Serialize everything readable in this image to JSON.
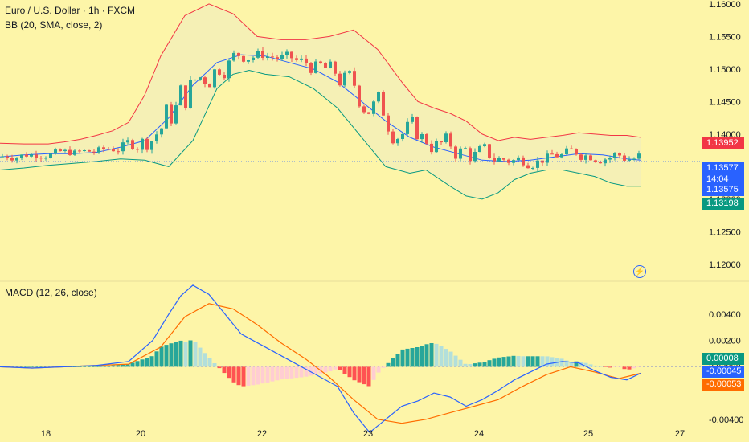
{
  "header": {
    "symbol_title": "Euro / U.S. Dollar · 1h · FXCM",
    "bb_legend": "BB (20, SMA, close, 2)",
    "macd_legend": "MACD (12, 26, close)"
  },
  "colors": {
    "up": "#26a69a",
    "down": "#ef5350",
    "bb_upper": "#f23645",
    "bb_lower": "#089981",
    "bb_basis": "#2962ff",
    "bb_fill": "#f3efb8",
    "macd_line": "#2962ff",
    "signal_line": "#ff6d00"
  },
  "price_tags": [
    {
      "name": "bb-upper-tag",
      "label": "1.13952",
      "color": "#f23645",
      "value": 1.13952
    },
    {
      "name": "last-price-tag",
      "label": "1.13577",
      "extra": "14:04",
      "color": "#2962ff",
      "value": 1.13577
    },
    {
      "name": "bb-basis-tag",
      "label": "1.13575",
      "color": "#2962ff",
      "value": 1.13575
    },
    {
      "name": "bb-lower-tag",
      "label": "1.13198",
      "color": "#089981",
      "value": 1.13198
    }
  ],
  "macd_tags": [
    {
      "name": "histogram-tag",
      "label": "0.00008",
      "color": "#089981",
      "value": 8e-05
    },
    {
      "name": "macd-line-tag",
      "label": "-0.00045",
      "color": "#2962ff",
      "value": -0.00045
    },
    {
      "name": "signal-line-tag",
      "label": "-0.00053",
      "color": "#ff6d00",
      "value": -0.00053
    }
  ],
  "chart_data": [
    {
      "type": "candlestick",
      "title": "Euro / U.S. Dollar · 1h · FXCM",
      "x_ticks": [
        "18",
        "20",
        "22",
        "23",
        "24",
        "25",
        "27"
      ],
      "y_ticks": [
        "1.16000",
        "1.15500",
        "1.15000",
        "1.14500",
        "1.14000",
        "1.13500",
        "1.13000",
        "1.12500",
        "1.12000"
      ],
      "ylim": [
        1.1174,
        1.1606
      ],
      "last_price": 1.13577,
      "series": [
        {
          "name": "BB upper",
          "x": [
            0,
            30,
            60,
            80,
            100,
            120,
            140,
            160,
            180,
            200,
            230,
            260,
            290,
            320,
            350,
            380,
            410,
            440,
            470,
            500,
            520,
            540,
            560,
            580,
            600,
            620,
            640,
            660,
            680,
            700,
            720,
            740,
            760,
            780,
            797
          ],
          "values": [
            1.1386,
            1.1385,
            1.1385,
            1.1388,
            1.1392,
            1.1398,
            1.1405,
            1.1418,
            1.146,
            1.152,
            1.1582,
            1.16,
            1.1585,
            1.155,
            1.1545,
            1.1545,
            1.155,
            1.156,
            1.153,
            1.148,
            1.145,
            1.144,
            1.1432,
            1.142,
            1.14,
            1.139,
            1.1395,
            1.1392,
            1.1395,
            1.1398,
            1.1402,
            1.14,
            1.1398,
            1.1398,
            1.1395
          ]
        },
        {
          "name": "BB basis",
          "x": [
            0,
            30,
            60,
            90,
            120,
            150,
            180,
            210,
            240,
            270,
            300,
            330,
            360,
            390,
            420,
            450,
            480,
            510,
            540,
            570,
            600,
            630,
            660,
            690,
            720,
            750,
            780,
            797
          ],
          "values": [
            1.1365,
            1.1368,
            1.137,
            1.137,
            1.1372,
            1.138,
            1.139,
            1.1425,
            1.1475,
            1.151,
            1.1522,
            1.152,
            1.151,
            1.15,
            1.148,
            1.145,
            1.142,
            1.1395,
            1.138,
            1.137,
            1.136,
            1.1358,
            1.136,
            1.1365,
            1.137,
            1.1368,
            1.1362,
            1.136
          ]
        },
        {
          "name": "BB lower",
          "x": [
            0,
            30,
            60,
            90,
            120,
            150,
            180,
            210,
            240,
            270,
            290,
            310,
            330,
            360,
            390,
            420,
            450,
            480,
            510,
            530,
            560,
            580,
            600,
            620,
            640,
            660,
            680,
            700,
            720,
            740,
            760,
            780,
            797
          ],
          "values": [
            1.1345,
            1.1348,
            1.1352,
            1.1355,
            1.1358,
            1.1362,
            1.136,
            1.135,
            1.139,
            1.147,
            1.1492,
            1.1498,
            1.1492,
            1.1488,
            1.147,
            1.144,
            1.1395,
            1.135,
            1.134,
            1.1345,
            1.132,
            1.1305,
            1.13,
            1.131,
            1.133,
            1.134,
            1.1345,
            1.1345,
            1.134,
            1.1335,
            1.1325,
            1.132,
            1.132
          ]
        }
      ]
    },
    {
      "type": "line",
      "title": "MACD (12, 26, close)",
      "y_ticks": [
        "0.00400",
        "0.00200",
        "0.00000",
        "-0.00400"
      ],
      "ylim": [
        -0.0045,
        0.0065
      ],
      "series": [
        {
          "name": "MACD",
          "x": [
            0,
            40,
            80,
            120,
            160,
            190,
            210,
            225,
            240,
            260,
            280,
            300,
            330,
            360,
            390,
            420,
            440,
            460,
            480,
            500,
            520,
            540,
            560,
            580,
            600,
            620,
            640,
            660,
            680,
            700,
            720,
            740,
            760,
            780,
            797
          ],
          "values": [
            0.0,
            -0.0001,
            0.0,
            0.0001,
            0.0004,
            0.002,
            0.004,
            0.0054,
            0.0062,
            0.0055,
            0.004,
            0.0025,
            0.0015,
            0.0005,
            -0.0005,
            -0.0015,
            -0.0035,
            -0.005,
            -0.004,
            -0.003,
            -0.0026,
            -0.002,
            -0.0023,
            -0.003,
            -0.0025,
            -0.0018,
            -0.001,
            -0.0004,
            0.0002,
            0.0004,
            0.0003,
            -0.0003,
            -0.0008,
            -0.001,
            -0.0005
          ]
        },
        {
          "name": "Signal",
          "x": [
            0,
            40,
            80,
            120,
            160,
            200,
            230,
            260,
            290,
            320,
            350,
            380,
            410,
            440,
            470,
            500,
            530,
            560,
            590,
            620,
            650,
            680,
            710,
            740,
            770,
            797
          ],
          "values": [
            0.0,
            -0.0001,
            0.0,
            0.0001,
            0.0002,
            0.0015,
            0.0038,
            0.0048,
            0.0044,
            0.0032,
            0.0018,
            0.0006,
            -0.0008,
            -0.0025,
            -0.004,
            -0.0043,
            -0.004,
            -0.0035,
            -0.003,
            -0.0025,
            -0.0015,
            -0.0006,
            0.0,
            -0.0004,
            -0.0009,
            -0.0005
          ]
        }
      ]
    }
  ]
}
